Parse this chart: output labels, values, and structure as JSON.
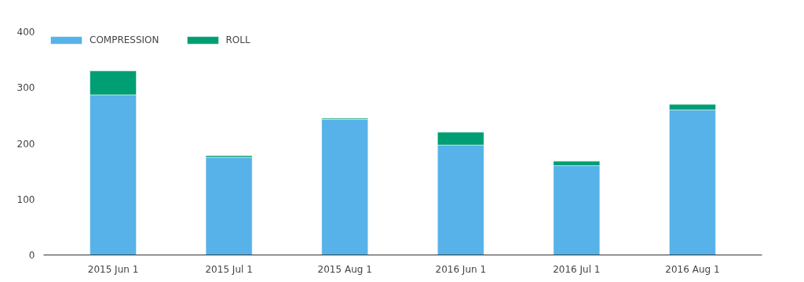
{
  "chart_data": {
    "type": "bar",
    "stacked": true,
    "categories": [
      "2015 Jun 1",
      "2015 Jul 1",
      "2015 Aug 1",
      "2016 Jun 1",
      "2016 Jul 1",
      "2016 Aug 1"
    ],
    "series": [
      {
        "name": "COMPRESSION",
        "color": "#56b2e8",
        "values": [
          287,
          175,
          243,
          197,
          160,
          260
        ]
      },
      {
        "name": "ROLL",
        "color": "#009e73",
        "values": [
          43,
          3,
          2,
          23,
          8,
          10
        ]
      }
    ],
    "ylim": [
      0,
      400
    ],
    "yticks": [
      0,
      100,
      200,
      300,
      400
    ],
    "grid": false,
    "legend": "top left"
  }
}
